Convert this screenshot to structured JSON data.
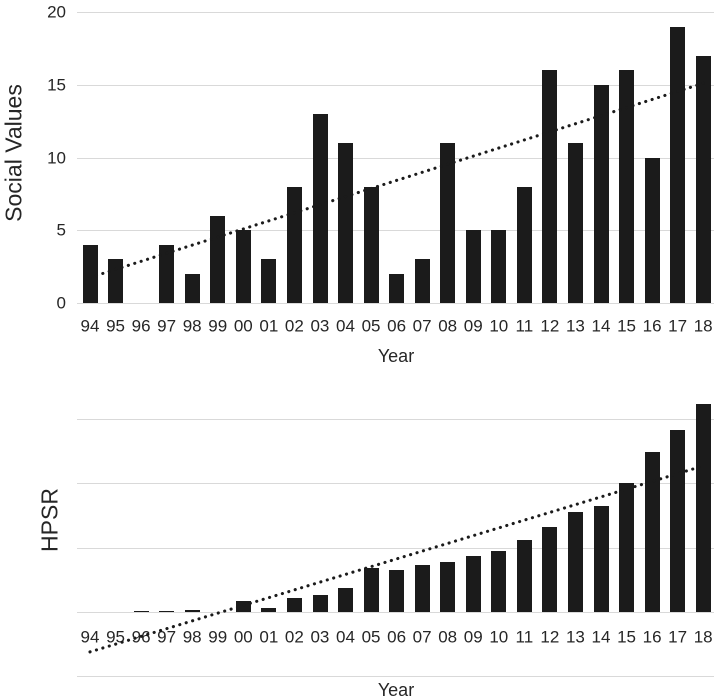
{
  "colors": {
    "background": "#ffffff",
    "bar": "#1b1b1b",
    "gridline": "#d9d9d9",
    "text": "#262626",
    "trendline": "#1b1b1b"
  },
  "chart_data": [
    {
      "type": "bar",
      "id": "social-values",
      "title": "",
      "ylabel": "Social Values",
      "xlabel": "Year",
      "categories": [
        "94",
        "95",
        "96",
        "97",
        "98",
        "99",
        "00",
        "01",
        "02",
        "03",
        "04",
        "05",
        "06",
        "07",
        "08",
        "09",
        "10",
        "11",
        "12",
        "13",
        "14",
        "15",
        "16",
        "17",
        "18"
      ],
      "values": [
        4,
        3,
        0,
        4,
        2,
        6,
        5,
        3,
        8,
        13,
        11,
        8,
        2,
        3,
        11,
        5,
        5,
        8,
        16,
        11,
        15,
        16,
        10,
        19,
        17
      ],
      "y_ticks": [
        0,
        5,
        10,
        15,
        20
      ],
      "gridline_values": [
        0,
        5,
        10,
        15,
        20
      ],
      "ylim": [
        0,
        20
      ],
      "grid": true,
      "legend": false,
      "y_tick_labels_visible": true,
      "trendline": {
        "style": "dotted",
        "start_value": 1.75,
        "end_value": 15.1
      }
    },
    {
      "type": "bar",
      "id": "hpsr",
      "title": "",
      "ylabel": "HPSR",
      "xlabel": "Year",
      "categories": [
        "94",
        "95",
        "96",
        "97",
        "98",
        "99",
        "00",
        "01",
        "02",
        "03",
        "04",
        "05",
        "06",
        "07",
        "08",
        "09",
        "10",
        "11",
        "12",
        "13",
        "14",
        "15",
        "16",
        "17",
        "18"
      ],
      "values": [
        0,
        0,
        2,
        2,
        3,
        0,
        17,
        6,
        22,
        27,
        38,
        68,
        65,
        73,
        78,
        87,
        95,
        112,
        132,
        155,
        165,
        200,
        248,
        283,
        324
      ],
      "y_ticks": [],
      "gridline_values": [
        -100,
        0,
        100,
        200,
        300
      ],
      "ylim": [
        -101,
        345
      ],
      "grid": true,
      "legend": false,
      "y_tick_labels_visible": false,
      "y_unit": "estimated; one gridline interval = 100",
      "trendline": {
        "style": "dotted",
        "start_value": -62,
        "end_value": 227
      }
    }
  ]
}
